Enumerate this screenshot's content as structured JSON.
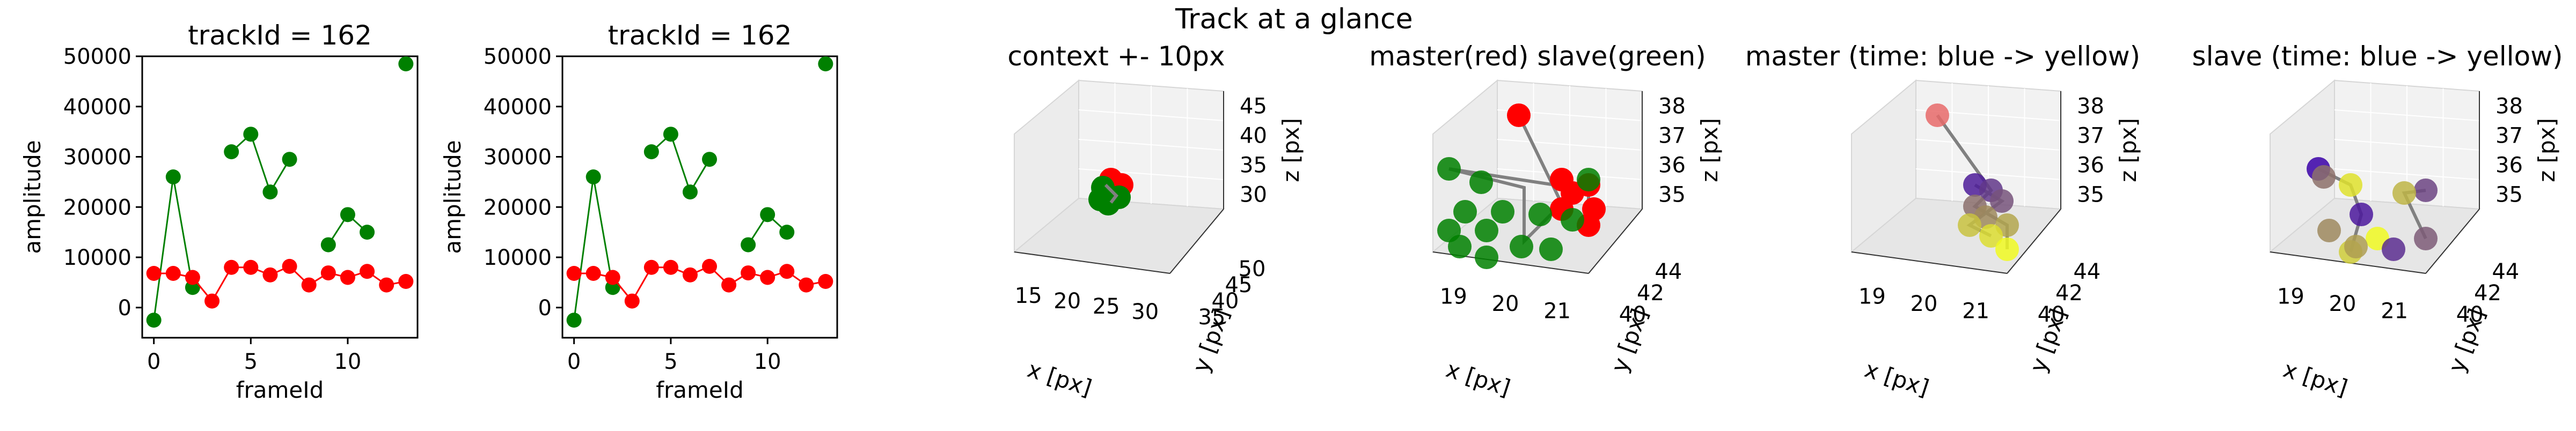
{
  "figure": {
    "suptitle": "Track at a glance"
  },
  "colors": {
    "master": "#ff0000",
    "slave": "#008000",
    "pane": "#f2f2f2",
    "line3d": "#808080",
    "time_start": "#3a00a8",
    "time_end": "#f0f921"
  },
  "chart_data": [
    {
      "type": "line",
      "title": "trackId = 162",
      "xlabel": "frameId",
      "ylabel": "amplitude",
      "xlim": [
        -0.6,
        13.6
      ],
      "ylim": [
        -6000,
        50000
      ],
      "xticks": [
        "0",
        "5",
        "10"
      ],
      "yticks": [
        "0",
        "10000",
        "20000",
        "30000",
        "40000",
        "50000"
      ],
      "series": [
        {
          "color": "green",
          "x": [
            0,
            1,
            2
          ],
          "y": [
            -2500,
            26000,
            4000
          ]
        },
        {
          "color": "green",
          "x": [
            4,
            5,
            6,
            7
          ],
          "y": [
            31000,
            34500,
            23000,
            29500
          ]
        },
        {
          "color": "green",
          "x": [
            9,
            10,
            11
          ],
          "y": [
            12500,
            18500,
            15000
          ]
        },
        {
          "color": "green",
          "x": [
            13
          ],
          "y": [
            48500
          ]
        },
        {
          "color": "red",
          "x": [
            0,
            1,
            2,
            3,
            4,
            5,
            6,
            7,
            8,
            9,
            10,
            11,
            12,
            13
          ],
          "y": [
            6800,
            6800,
            6000,
            1300,
            8000,
            8000,
            6500,
            8200,
            4500,
            6900,
            6000,
            7200,
            4500,
            5200
          ]
        }
      ]
    },
    {
      "type": "scatter",
      "title": "trackId = 162",
      "xlabel": "frameId",
      "ylabel": "amplitude",
      "xlim": [
        -0.6,
        13.6
      ],
      "ylim": [
        -6000,
        50000
      ],
      "xticks": [
        "0",
        "5",
        "10"
      ],
      "yticks": [
        "0",
        "10000",
        "20000",
        "30000",
        "40000",
        "50000"
      ],
      "series": [
        {
          "color": "green",
          "x": [
            0,
            1,
            2
          ],
          "y": [
            -2500,
            26000,
            4000
          ]
        },
        {
          "color": "green",
          "x": [
            4,
            5,
            6,
            7
          ],
          "y": [
            31000,
            34500,
            23000,
            29500
          ]
        },
        {
          "color": "green",
          "x": [
            9,
            10,
            11
          ],
          "y": [
            12500,
            18500,
            15000
          ]
        },
        {
          "color": "green",
          "x": [
            13
          ],
          "y": [
            48500
          ]
        },
        {
          "color": "red",
          "x": [
            0,
            1,
            2,
            3,
            4,
            5,
            6,
            7,
            8,
            9,
            10,
            11,
            12,
            13
          ],
          "y": [
            6800,
            6800,
            6000,
            1300,
            8000,
            8000,
            6500,
            8200,
            4500,
            6900,
            6000,
            7200,
            4500,
            5200
          ]
        }
      ]
    },
    {
      "type": "scatter3d",
      "title": "context +- 10px",
      "xlabel": "x [px]",
      "ylabel": "y [px]",
      "zlabel": "z [px]",
      "xticks": [
        "15",
        "20",
        "25",
        "30"
      ],
      "yticks": [
        "35",
        "40",
        "45",
        "50"
      ],
      "zticks": [
        "30",
        "35",
        "40",
        "45"
      ]
    },
    {
      "type": "scatter3d",
      "title": "master(red) slave(green)",
      "xlabel": "x [px]",
      "ylabel": "y [px]",
      "zlabel": "z [px]",
      "xticks": [
        "19",
        "20",
        "21"
      ],
      "yticks": [
        "40",
        "42",
        "44"
      ],
      "zticks": [
        "35",
        "36",
        "37",
        "38"
      ]
    },
    {
      "type": "scatter3d",
      "title": "master (time: blue -> yellow)",
      "xlabel": "x [px]",
      "ylabel": "y [px]",
      "zlabel": "z [px]",
      "xticks": [
        "19",
        "20",
        "21"
      ],
      "yticks": [
        "40",
        "42",
        "44"
      ],
      "zticks": [
        "35",
        "36",
        "37",
        "38"
      ]
    },
    {
      "type": "scatter3d",
      "title": "slave (time: blue -> yellow)",
      "xlabel": "x [px]",
      "ylabel": "y [px]",
      "zlabel": "z [px]",
      "xticks": [
        "19",
        "20",
        "21"
      ],
      "yticks": [
        "40",
        "42",
        "44"
      ],
      "zticks": [
        "35",
        "36",
        "37",
        "38"
      ]
    }
  ]
}
